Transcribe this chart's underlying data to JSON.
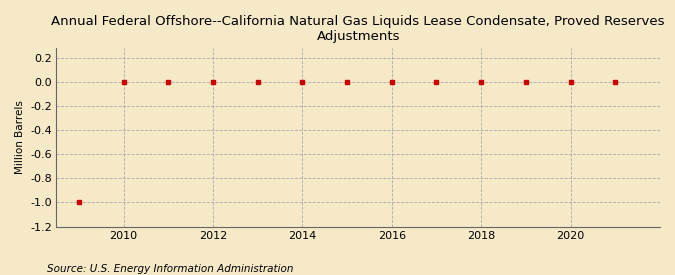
{
  "title": "Annual Federal Offshore--California Natural Gas Liquids Lease Condensate, Proved Reserves\nAdjustments",
  "ylabel": "Million Barrels",
  "source": "Source: U.S. Energy Information Administration",
  "x_values": [
    2009,
    2010,
    2011,
    2012,
    2013,
    2014,
    2015,
    2016,
    2017,
    2018,
    2019,
    2020,
    2021
  ],
  "y_values": [
    -1.0,
    0.0,
    0.0,
    0.0,
    0.0,
    0.0,
    0.0,
    0.0,
    0.0,
    0.0,
    0.0,
    0.0,
    0.0
  ],
  "marker_color": "#cc0000",
  "background_color": "#f5e9c8",
  "plot_bg_color": "#f5e9c8",
  "grid_color": "#aaaaaa",
  "ylim": [
    -1.2,
    0.28
  ],
  "yticks": [
    -1.2,
    -1.0,
    -0.8,
    -0.6,
    -0.4,
    -0.2,
    0.0,
    0.2
  ],
  "xlim": [
    2008.5,
    2022.0
  ],
  "xticks": [
    2010,
    2012,
    2014,
    2016,
    2018,
    2020
  ],
  "title_fontsize": 9.5,
  "ylabel_fontsize": 7.5,
  "tick_fontsize": 8,
  "source_fontsize": 7.5
}
